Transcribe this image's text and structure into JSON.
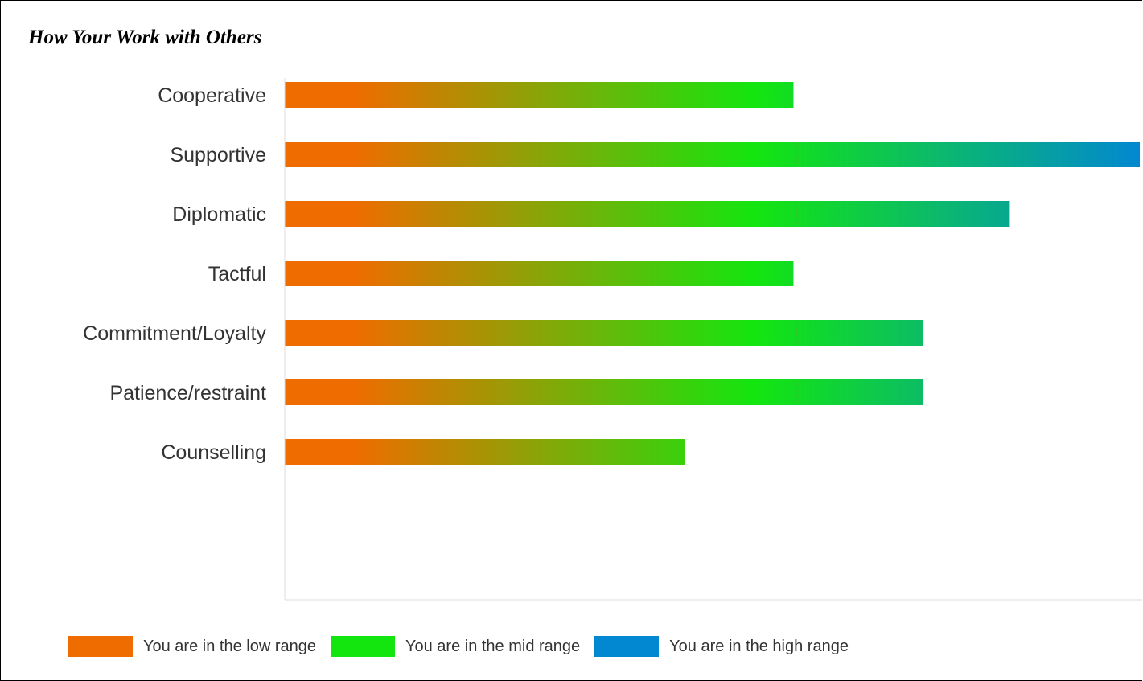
{
  "title": "How Your Work with Others",
  "colors": {
    "low": "#ef6c00",
    "mid": "#13e60f",
    "high": "#0288d1",
    "axis": "#dddddd",
    "marker": "#e05a00"
  },
  "chart_data": {
    "type": "bar",
    "orientation": "horizontal",
    "title": "How Your Work with Others",
    "categories": [
      "Cooperative",
      "Supportive",
      "Diplomatic",
      "Tactful",
      "Commitment/Loyalty",
      "Patience/restraint",
      "Counselling"
    ],
    "values": [
      0.595,
      1.0,
      0.848,
      0.595,
      0.747,
      0.747,
      0.468
    ],
    "value_scale": "fraction of full bar length (no numeric axis shown)",
    "mid_marker": 0.598,
    "grid": false,
    "legend_position": "bottom",
    "legend": [
      {
        "label": "You are in the low range",
        "color": "#ef6c00"
      },
      {
        "label": "You are in the mid range",
        "color": "#13e60f"
      },
      {
        "label": "You are in the high range",
        "color": "#0288d1"
      }
    ]
  }
}
